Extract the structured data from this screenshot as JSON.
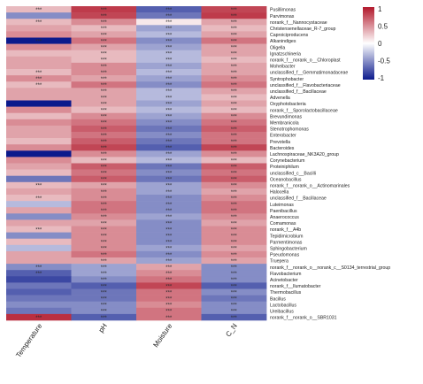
{
  "chart_data": {
    "type": "heatmap",
    "title": "",
    "xlabel": "",
    "ylabel": "",
    "columns": [
      "Temperature",
      "pH",
      "Moisture",
      "C_N"
    ],
    "rows": [
      "Pusillimonas",
      "Parvimonas",
      "norank_f__Nannocystaceae",
      "Christensenellaceae_R-7_group",
      "Caproiciproducens",
      "Alkanindiges",
      "Oligella",
      "Ignatzschineria",
      "norank_f__norank_o__Chloroplast",
      "Moheibacter",
      "unclassified_f__Gemmatimonadaceae",
      "Syntrophobacter",
      "unclassified_f__Flavobacteriaceae",
      "unclassified_f__Bacillaceae",
      "Advenella",
      "Oxyphotobacteria",
      "norank_f__Sporolactobacillaceae",
      "Brevundimonas",
      "Membranicola",
      "Stenotrophomonas",
      "Enterobacter",
      "Prevotella",
      "Bacteroides",
      "Lachnospiraceae_NK3A20_group",
      "Corynebacterium",
      "Proteiniphilum",
      "unclassified_c__Bacilli",
      "Oceanobacillus",
      "norank_f__norank_o__Actinomarinales",
      "Halocella",
      "unclassified_f__Bacillaceae",
      "Luteimonas",
      "Paenibacillus",
      "Anaerococcus",
      "Comamonas",
      "norank_f__A4b",
      "Tepidimicrobium",
      "Parmentimonas",
      "Sphingobacterium",
      "Pseudomonas",
      "Truepera",
      "norank_f__norank_o__norank_c__S0134_terrestrial_group",
      "Flavobacterium",
      "Acinetobacter",
      "norank_f__Ilumatobacter",
      "Thermobacillus",
      "Bacillus",
      "Lactobacillus",
      "Ureibacillus",
      "norank_f__norank_o__SBR1031"
    ],
    "values": [
      [
        0.3,
        0.85,
        -0.7,
        0.8
      ],
      [
        -0.5,
        0.8,
        -0.6,
        0.85
      ],
      [
        0.3,
        0.5,
        0.1,
        0.4
      ],
      [
        0.4,
        0.3,
        -0.4,
        0.3
      ],
      [
        0.5,
        0.4,
        -0.3,
        0.4
      ],
      [
        -1.0,
        0.6,
        -0.5,
        0.6
      ],
      [
        0.5,
        0.4,
        -0.4,
        0.4
      ],
      [
        0.3,
        0.3,
        -0.3,
        0.4
      ],
      [
        0.4,
        0.3,
        -0.3,
        0.3
      ],
      [
        0.4,
        0.5,
        -0.4,
        0.4
      ],
      [
        0.3,
        0.5,
        -0.3,
        0.4
      ],
      [
        0.5,
        0.4,
        -0.4,
        0.5
      ],
      [
        0.3,
        0.6,
        -0.5,
        0.6
      ],
      [
        0.4,
        0.4,
        -0.3,
        0.4
      ],
      [
        0.4,
        0.4,
        -0.3,
        0.3
      ],
      [
        -1.0,
        0.4,
        -0.4,
        0.4
      ],
      [
        0.5,
        0.3,
        -0.3,
        0.3
      ],
      [
        0.3,
        0.5,
        -0.4,
        0.5
      ],
      [
        0.5,
        0.6,
        -0.5,
        0.6
      ],
      [
        0.4,
        0.7,
        -0.6,
        0.7
      ],
      [
        0.4,
        0.6,
        -0.5,
        0.6
      ],
      [
        0.3,
        0.7,
        -0.6,
        0.6
      ],
      [
        0.5,
        0.8,
        -0.7,
        0.8
      ],
      [
        -1.0,
        0.5,
        -0.4,
        0.5
      ],
      [
        0.5,
        0.3,
        -0.3,
        0.3
      ],
      [
        0.4,
        0.7,
        -0.6,
        0.7
      ],
      [
        0.3,
        0.6,
        -0.5,
        0.6
      ],
      [
        -0.6,
        0.7,
        -0.6,
        0.7
      ],
      [
        0.3,
        0.4,
        -0.4,
        0.5
      ],
      [
        0.4,
        0.5,
        -0.4,
        0.4
      ],
      [
        0.3,
        0.5,
        -0.5,
        0.5
      ],
      [
        -0.3,
        0.6,
        -0.5,
        0.6
      ],
      [
        0.4,
        0.6,
        -0.5,
        0.6
      ],
      [
        -0.5,
        0.5,
        -0.4,
        0.5
      ],
      [
        0.4,
        0.4,
        -0.5,
        0.4
      ],
      [
        0.3,
        0.5,
        -0.5,
        0.5
      ],
      [
        -0.5,
        0.5,
        -0.5,
        0.5
      ],
      [
        0.3,
        0.5,
        -0.5,
        0.5
      ],
      [
        -0.3,
        0.5,
        -0.4,
        0.4
      ],
      [
        0.4,
        0.6,
        -0.5,
        0.5
      ],
      [
        0.4,
        0.4,
        -0.4,
        0.4
      ],
      [
        -0.5,
        -0.4,
        0.4,
        -0.5
      ],
      [
        -0.7,
        -0.4,
        0.5,
        -0.5
      ],
      [
        -0.8,
        -0.5,
        0.6,
        -0.5
      ],
      [
        -0.6,
        -0.7,
        0.8,
        -0.7
      ],
      [
        -0.7,
        -0.6,
        0.6,
        -0.5
      ],
      [
        -0.6,
        -0.6,
        0.6,
        -0.6
      ],
      [
        -0.5,
        -0.5,
        0.5,
        -0.5
      ],
      [
        -0.6,
        -0.5,
        0.6,
        -0.5
      ],
      [
        0.9,
        -0.7,
        0.6,
        -0.7
      ]
    ],
    "significance": [
      [
        "***",
        "***",
        "***",
        "***"
      ],
      [
        "",
        "***",
        "***",
        "***"
      ],
      [
        "***",
        "***",
        "***",
        "***"
      ],
      [
        "",
        "***",
        "***",
        "***"
      ],
      [
        "",
        "***",
        "***",
        "***"
      ],
      [
        "***",
        "***",
        "***",
        "***"
      ],
      [
        "",
        "***",
        "***",
        "***"
      ],
      [
        "",
        "***",
        "***",
        "***"
      ],
      [
        "",
        "***",
        "***",
        "***"
      ],
      [
        "",
        "***",
        "***",
        "***"
      ],
      [
        "***",
        "***",
        "***",
        "***"
      ],
      [
        "***",
        "***",
        "***",
        "***"
      ],
      [
        "***",
        "***",
        "***",
        "***"
      ],
      [
        "",
        "***",
        "***",
        "***"
      ],
      [
        "",
        "***",
        "***",
        "***"
      ],
      [
        "",
        "***",
        "***",
        "***"
      ],
      [
        "",
        "***",
        "***",
        "***"
      ],
      [
        "",
        "***",
        "***",
        "***"
      ],
      [
        "",
        "***",
        "***",
        "***"
      ],
      [
        "",
        "***",
        "***",
        "***"
      ],
      [
        "",
        "***",
        "***",
        "***"
      ],
      [
        "",
        "***",
        "***",
        "***"
      ],
      [
        "",
        "***",
        "***",
        "***"
      ],
      [
        "",
        "***",
        "***",
        "***"
      ],
      [
        "",
        "***",
        "***",
        "***"
      ],
      [
        "",
        "***",
        "***",
        "***"
      ],
      [
        "",
        "***",
        "***",
        "***"
      ],
      [
        "",
        "***",
        "***",
        "***"
      ],
      [
        "***",
        "***",
        "***",
        "***"
      ],
      [
        "",
        "***",
        "***",
        "***"
      ],
      [
        "***",
        "***",
        "***",
        "***"
      ],
      [
        "",
        "***",
        "***",
        "***"
      ],
      [
        "",
        "***",
        "***",
        "***"
      ],
      [
        "",
        "***",
        "***",
        "***"
      ],
      [
        "",
        "***",
        "***",
        "***"
      ],
      [
        "***",
        "***",
        "***",
        "***"
      ],
      [
        "",
        "***",
        "***",
        "***"
      ],
      [
        "",
        "***",
        "***",
        "***"
      ],
      [
        "",
        "***",
        "***",
        "***"
      ],
      [
        "",
        "***",
        "***",
        "***"
      ],
      [
        "",
        "***",
        "***",
        "***"
      ],
      [
        "***",
        "***",
        "***",
        "***"
      ],
      [
        "***",
        "***",
        "***",
        "***"
      ],
      [
        "",
        "***",
        "***",
        "***"
      ],
      [
        "",
        "***",
        "***",
        "***"
      ],
      [
        "",
        "***",
        "***",
        "***"
      ],
      [
        "",
        "***",
        "***",
        "***"
      ],
      [
        "",
        "***",
        "***",
        "***"
      ],
      [
        "",
        "***",
        "***",
        "***"
      ],
      [
        "***",
        "***",
        "***",
        "***"
      ]
    ],
    "legend": {
      "ticks": [
        "1",
        "0.5",
        "0",
        "-0.5",
        "-1"
      ],
      "range": [
        -1,
        1
      ],
      "colors": {
        "high": "#b2182b",
        "mid": "#ffffff",
        "low": "#0b1a8c"
      },
      "placement": "top-right"
    },
    "grid": false
  }
}
